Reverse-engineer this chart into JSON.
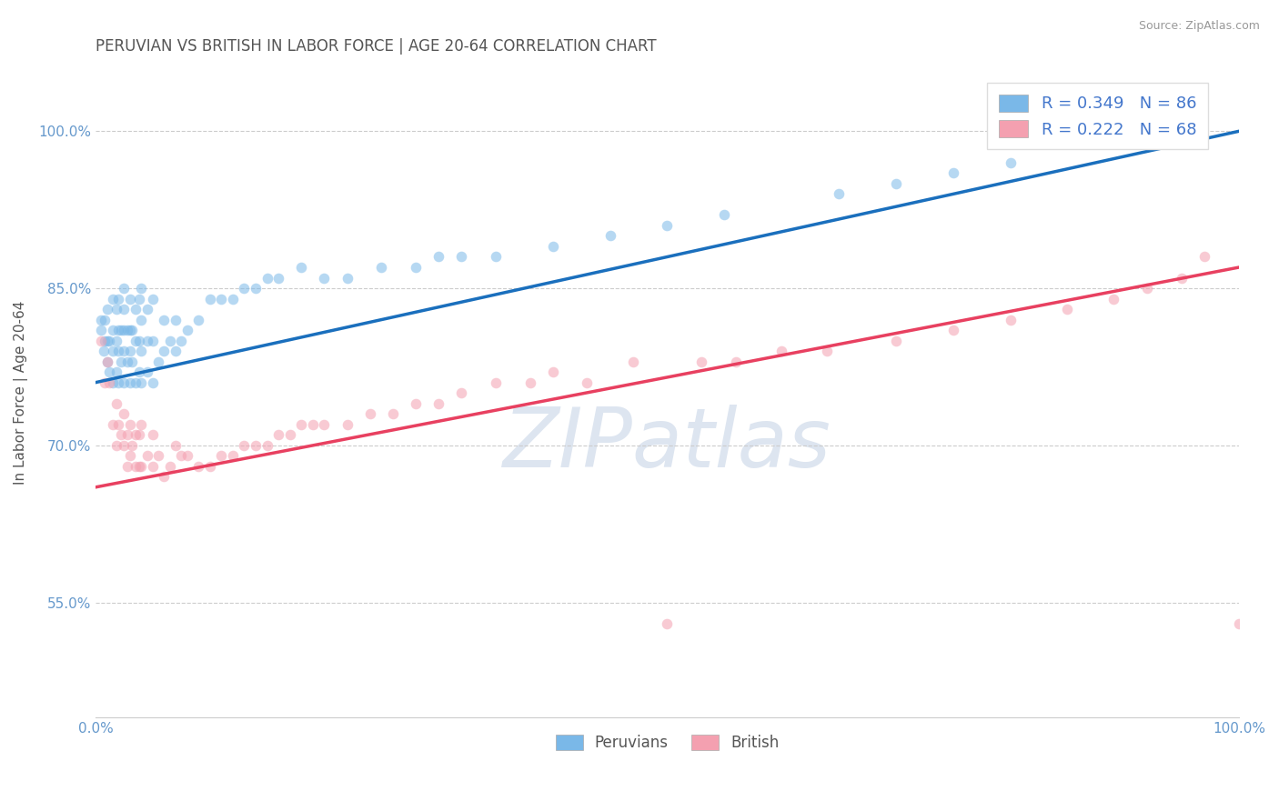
{
  "title": "PERUVIAN VS BRITISH IN LABOR FORCE | AGE 20-64 CORRELATION CHART",
  "source": "Source: ZipAtlas.com",
  "ylabel": "In Labor Force | Age 20-64",
  "x_min": 0.0,
  "x_max": 1.0,
  "y_min": 0.44,
  "y_max": 1.06,
  "yticks": [
    0.55,
    0.7,
    0.85,
    1.0
  ],
  "ytick_labels": [
    "55.0%",
    "70.0%",
    "85.0%",
    "100.0%"
  ],
  "xticks": [
    0.0,
    0.1,
    0.2,
    0.3,
    0.4,
    0.5,
    0.6,
    0.7,
    0.8,
    0.9,
    1.0
  ],
  "xtick_labels": [
    "0.0%",
    "",
    "",
    "",
    "",
    "",
    "",
    "",
    "",
    "",
    "100.0%"
  ],
  "blue_color": "#7ab8e8",
  "pink_color": "#f4a0b0",
  "blue_line_color": "#1a6fbd",
  "pink_line_color": "#e84060",
  "R_blue": 0.349,
  "N_blue": 86,
  "R_pink": 0.222,
  "N_pink": 68,
  "legend_label_blue": "Peruvians",
  "legend_label_pink": "British",
  "watermark": "ZIPatlas",
  "blue_scatter_x": [
    0.005,
    0.005,
    0.007,
    0.008,
    0.008,
    0.01,
    0.01,
    0.01,
    0.012,
    0.012,
    0.015,
    0.015,
    0.015,
    0.015,
    0.018,
    0.018,
    0.018,
    0.02,
    0.02,
    0.02,
    0.02,
    0.022,
    0.022,
    0.025,
    0.025,
    0.025,
    0.025,
    0.025,
    0.028,
    0.028,
    0.03,
    0.03,
    0.03,
    0.03,
    0.032,
    0.032,
    0.035,
    0.035,
    0.035,
    0.038,
    0.038,
    0.038,
    0.04,
    0.04,
    0.04,
    0.04,
    0.045,
    0.045,
    0.045,
    0.05,
    0.05,
    0.05,
    0.055,
    0.06,
    0.06,
    0.065,
    0.07,
    0.07,
    0.075,
    0.08,
    0.09,
    0.1,
    0.11,
    0.12,
    0.13,
    0.14,
    0.15,
    0.16,
    0.18,
    0.2,
    0.22,
    0.25,
    0.28,
    0.3,
    0.32,
    0.35,
    0.4,
    0.45,
    0.5,
    0.55,
    0.65,
    0.7,
    0.75,
    0.8,
    0.88,
    0.93
  ],
  "blue_scatter_y": [
    0.81,
    0.82,
    0.79,
    0.8,
    0.82,
    0.78,
    0.8,
    0.83,
    0.77,
    0.8,
    0.76,
    0.79,
    0.81,
    0.84,
    0.77,
    0.8,
    0.83,
    0.76,
    0.79,
    0.81,
    0.84,
    0.78,
    0.81,
    0.76,
    0.79,
    0.81,
    0.83,
    0.85,
    0.78,
    0.81,
    0.76,
    0.79,
    0.81,
    0.84,
    0.78,
    0.81,
    0.76,
    0.8,
    0.83,
    0.77,
    0.8,
    0.84,
    0.76,
    0.79,
    0.82,
    0.85,
    0.77,
    0.8,
    0.83,
    0.76,
    0.8,
    0.84,
    0.78,
    0.79,
    0.82,
    0.8,
    0.79,
    0.82,
    0.8,
    0.81,
    0.82,
    0.84,
    0.84,
    0.84,
    0.85,
    0.85,
    0.86,
    0.86,
    0.87,
    0.86,
    0.86,
    0.87,
    0.87,
    0.88,
    0.88,
    0.88,
    0.89,
    0.9,
    0.91,
    0.92,
    0.94,
    0.95,
    0.96,
    0.97,
    0.99,
    1.0
  ],
  "pink_scatter_x": [
    0.005,
    0.008,
    0.01,
    0.012,
    0.015,
    0.018,
    0.018,
    0.02,
    0.022,
    0.025,
    0.025,
    0.028,
    0.028,
    0.03,
    0.03,
    0.032,
    0.035,
    0.035,
    0.038,
    0.038,
    0.04,
    0.04,
    0.045,
    0.05,
    0.05,
    0.055,
    0.06,
    0.065,
    0.07,
    0.075,
    0.08,
    0.09,
    0.1,
    0.11,
    0.12,
    0.13,
    0.14,
    0.15,
    0.16,
    0.17,
    0.18,
    0.19,
    0.2,
    0.22,
    0.24,
    0.26,
    0.28,
    0.3,
    0.32,
    0.35,
    0.38,
    0.4,
    0.43,
    0.47,
    0.5,
    0.53,
    0.56,
    0.6,
    0.64,
    0.7,
    0.75,
    0.8,
    0.85,
    0.89,
    0.92,
    0.95,
    0.97,
    1.0
  ],
  "pink_scatter_y": [
    0.8,
    0.76,
    0.78,
    0.76,
    0.72,
    0.7,
    0.74,
    0.72,
    0.71,
    0.7,
    0.73,
    0.68,
    0.71,
    0.69,
    0.72,
    0.7,
    0.68,
    0.71,
    0.68,
    0.71,
    0.68,
    0.72,
    0.69,
    0.68,
    0.71,
    0.69,
    0.67,
    0.68,
    0.7,
    0.69,
    0.69,
    0.68,
    0.68,
    0.69,
    0.69,
    0.7,
    0.7,
    0.7,
    0.71,
    0.71,
    0.72,
    0.72,
    0.72,
    0.72,
    0.73,
    0.73,
    0.74,
    0.74,
    0.75,
    0.76,
    0.76,
    0.77,
    0.76,
    0.78,
    0.53,
    0.78,
    0.78,
    0.79,
    0.79,
    0.8,
    0.81,
    0.82,
    0.83,
    0.84,
    0.85,
    0.86,
    0.88,
    0.53
  ],
  "blue_line_x": [
    0.0,
    1.0
  ],
  "blue_line_y": [
    0.76,
    1.0
  ],
  "pink_line_x": [
    0.0,
    1.0
  ],
  "pink_line_y": [
    0.66,
    0.87
  ],
  "grid_color": "#cccccc",
  "background_color": "#ffffff",
  "title_color": "#555555",
  "axis_label_color": "#555555",
  "tick_color": "#6699cc",
  "tick_fontsize": 11,
  "title_fontsize": 12,
  "ylabel_fontsize": 11,
  "watermark_color": "#dde5f0",
  "watermark_fontsize": 65,
  "source_fontsize": 9,
  "source_color": "#999999",
  "legend_text_color": "#4477cc"
}
